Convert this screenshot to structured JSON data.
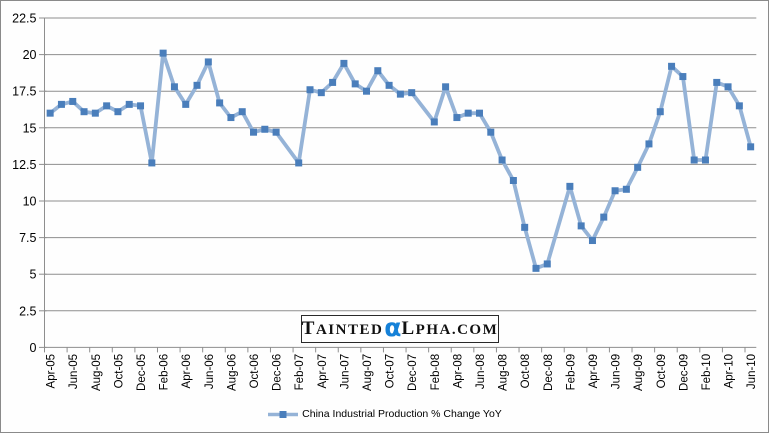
{
  "chart_data": {
    "type": "line",
    "title": "",
    "xlabel": "",
    "ylabel": "",
    "ylim": [
      0,
      22.5
    ],
    "y_tick_step": 2.5,
    "y_tick_labels": [
      "0",
      "2.5",
      "5",
      "7.5",
      "10",
      "12.5",
      "15",
      "17.5",
      "20",
      "22.5"
    ],
    "x_tick_labels": [
      "Apr-05",
      "Jun-05",
      "Aug-05",
      "Oct-05",
      "Dec-05",
      "Feb-06",
      "Apr-06",
      "Jun-06",
      "Aug-06",
      "Oct-06",
      "Dec-06",
      "Feb-07",
      "Apr-07",
      "Jun-07",
      "Aug-07",
      "Oct-07",
      "Dec-07",
      "Feb-08",
      "Apr-08",
      "Jun-08",
      "Aug-08",
      "Oct-08",
      "Dec-08",
      "Feb-09",
      "Apr-09",
      "Jun-09",
      "Aug-09",
      "Oct-09",
      "Dec-09",
      "Feb-10",
      "Apr-10",
      "Jun-10"
    ],
    "x_total_month_slots": 63,
    "x_label_every_slots": 2,
    "grid": true,
    "legend_position": "bottom",
    "series": [
      {
        "name": "China Industrial Production % Change YoY",
        "marker": "square",
        "points": [
          [
            "Apr-05",
            0,
            16.0
          ],
          [
            "May-05",
            1,
            16.6
          ],
          [
            "Jun-05",
            2,
            16.8
          ],
          [
            "Jul-05",
            3,
            16.1
          ],
          [
            "Aug-05",
            4,
            16.0
          ],
          [
            "Sep-05",
            5,
            16.5
          ],
          [
            "Oct-05",
            6,
            16.1
          ],
          [
            "Nov-05",
            7,
            16.6
          ],
          [
            "Dec-05",
            8,
            16.5
          ],
          [
            "Jan-06",
            9,
            12.6
          ],
          [
            "Feb-06",
            10,
            20.1
          ],
          [
            "Mar-06",
            11,
            17.8
          ],
          [
            "Apr-06",
            12,
            16.6
          ],
          [
            "May-06",
            13,
            17.9
          ],
          [
            "Jun-06",
            14,
            19.5
          ],
          [
            "Jul-06",
            15,
            16.7
          ],
          [
            "Aug-06",
            16,
            15.7
          ],
          [
            "Sep-06",
            17,
            16.1
          ],
          [
            "Oct-06",
            18,
            14.7
          ],
          [
            "Nov-06",
            19,
            14.9
          ],
          [
            "Dec-06",
            20,
            14.7
          ],
          [
            "Feb-07",
            22,
            12.6
          ],
          [
            "Mar-07",
            23,
            17.6
          ],
          [
            "Apr-07",
            24,
            17.4
          ],
          [
            "May-07",
            25,
            18.1
          ],
          [
            "Jun-07",
            26,
            19.4
          ],
          [
            "Jul-07",
            27,
            18.0
          ],
          [
            "Aug-07",
            28,
            17.5
          ],
          [
            "Sep-07",
            29,
            18.9
          ],
          [
            "Oct-07",
            30,
            17.9
          ],
          [
            "Nov-07",
            31,
            17.3
          ],
          [
            "Dec-07",
            32,
            17.4
          ],
          [
            "Feb-08",
            34,
            15.4
          ],
          [
            "Mar-08",
            35,
            17.8
          ],
          [
            "Apr-08",
            36,
            15.7
          ],
          [
            "May-08",
            37,
            16.0
          ],
          [
            "Jun-08",
            38,
            16.0
          ],
          [
            "Jul-08",
            39,
            14.7
          ],
          [
            "Aug-08",
            40,
            12.8
          ],
          [
            "Sep-08",
            41,
            11.4
          ],
          [
            "Oct-08",
            42,
            8.2
          ],
          [
            "Nov-08",
            43,
            5.4
          ],
          [
            "Dec-08",
            44,
            5.7
          ],
          [
            "Feb-09",
            46,
            11.0
          ],
          [
            "Mar-09",
            47,
            8.3
          ],
          [
            "Apr-09",
            48,
            7.3
          ],
          [
            "May-09",
            49,
            8.9
          ],
          [
            "Jun-09",
            50,
            10.7
          ],
          [
            "Jul-09",
            51,
            10.8
          ],
          [
            "Aug-09",
            52,
            12.3
          ],
          [
            "Sep-09",
            53,
            13.9
          ],
          [
            "Oct-09",
            54,
            16.1
          ],
          [
            "Nov-09",
            55,
            19.2
          ],
          [
            "Dec-09",
            56,
            18.5
          ],
          [
            "Jan-10",
            57,
            12.8
          ],
          [
            "Feb-10",
            58,
            12.8
          ],
          [
            "Mar-10",
            59,
            18.1
          ],
          [
            "Apr-10",
            60,
            17.8
          ],
          [
            "May-10",
            61,
            16.5
          ],
          [
            "Jun-10",
            62,
            13.7
          ]
        ]
      }
    ],
    "colors": {
      "line": "#95b3d7",
      "marker": "#4a7ebb",
      "gridline": "#8e8e8e",
      "axis": "#8e8e8e",
      "tick": "#8e8e8e",
      "label_text": "#000000",
      "chart_border": "#8a8a8a"
    }
  },
  "legend": {
    "label": "China Industrial Production % Change YoY"
  },
  "watermark": {
    "prefix": "Tainted",
    "alpha": "α",
    "suffix": "lpha.com",
    "alpha_color": "#1581d8"
  }
}
